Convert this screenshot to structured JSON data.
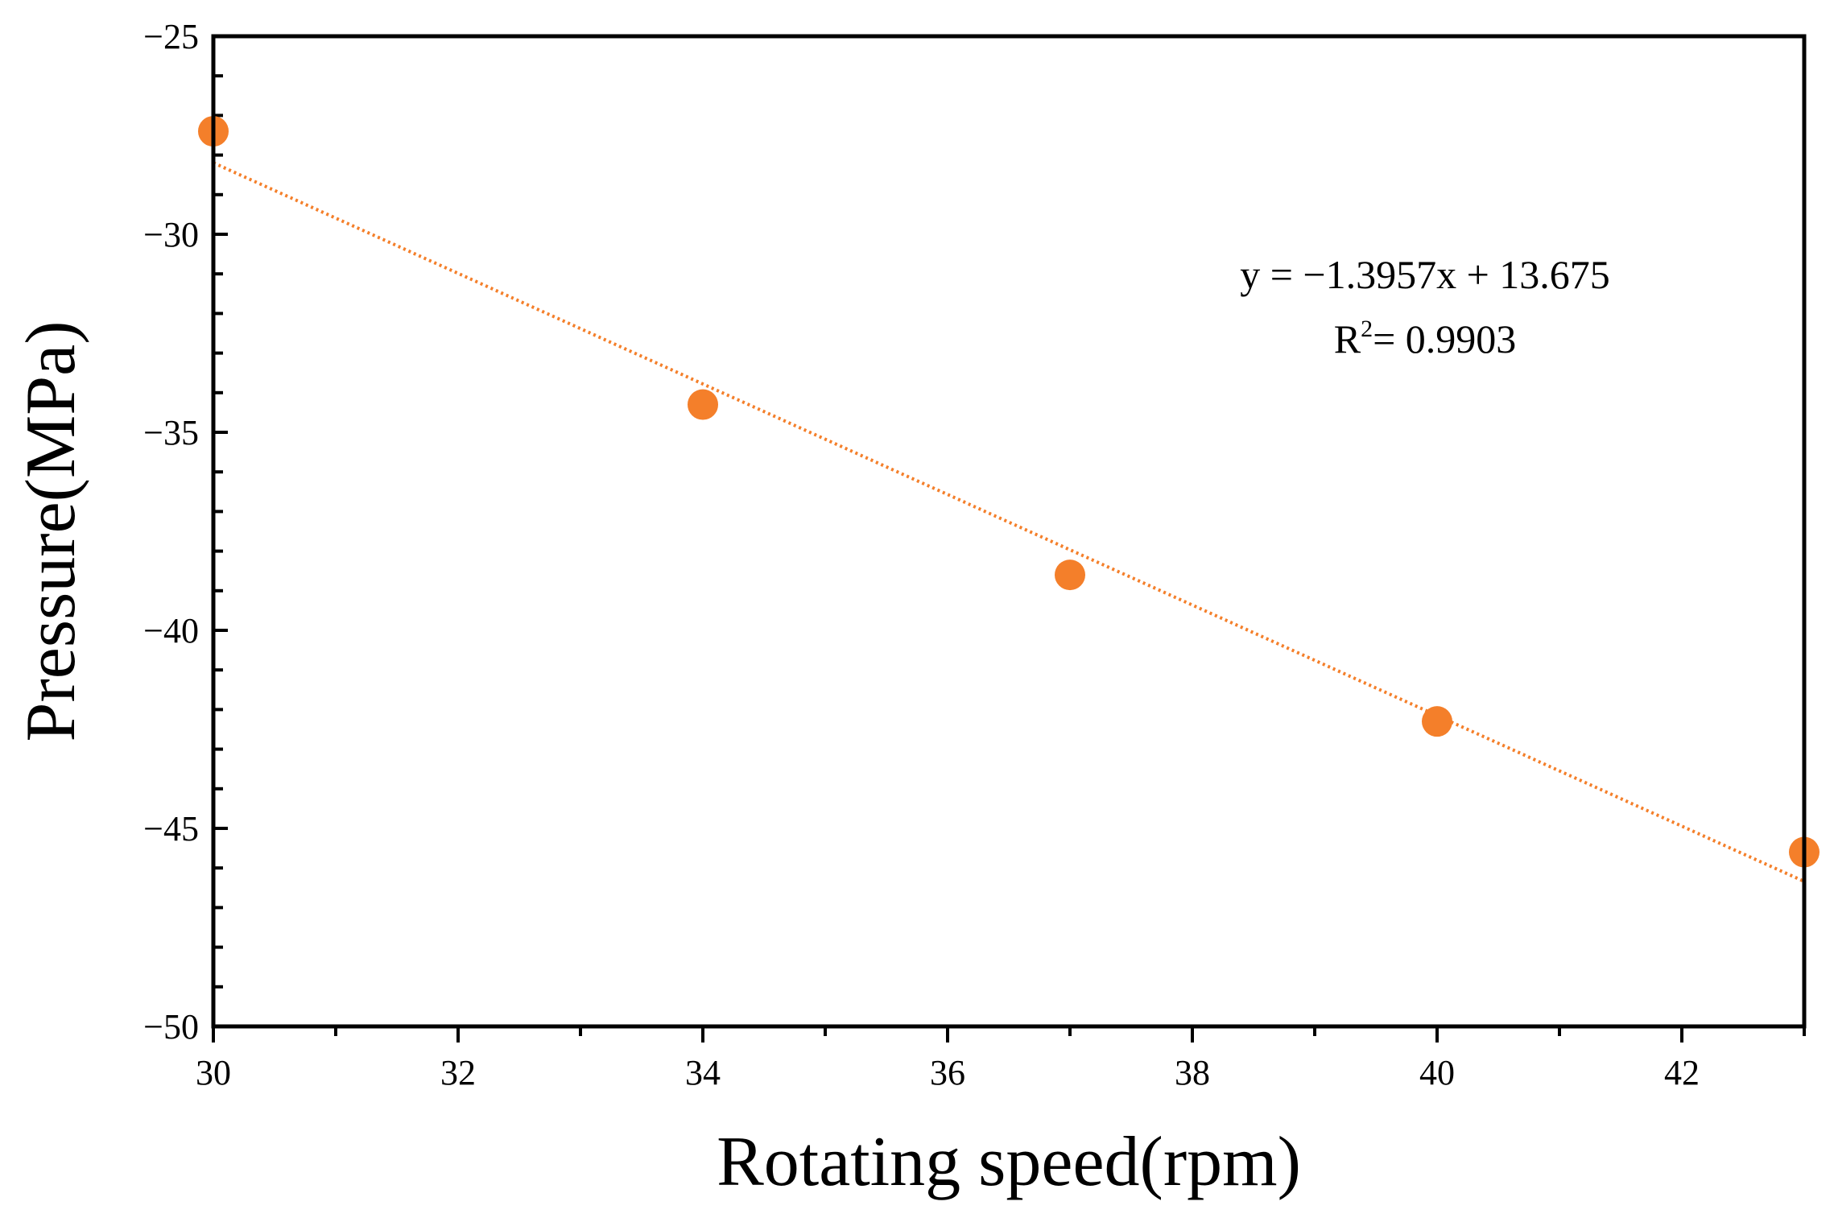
{
  "chart_data": {
    "type": "scatter",
    "title": "",
    "xlabel": "Rotating speed(rpm)",
    "ylabel": "Pressure(MPa)",
    "xlim": [
      30,
      43
    ],
    "ylim": [
      -50,
      -25
    ],
    "x_ticks": [
      30,
      32,
      34,
      36,
      38,
      40,
      42
    ],
    "x_tick_labels": [
      "30",
      "32",
      "34",
      "36",
      "38",
      "40",
      "42"
    ],
    "y_ticks": [
      -25,
      -30,
      -35,
      -40,
      -45,
      -50
    ],
    "y_tick_labels": [
      "−25",
      "−30",
      "−35",
      "−40",
      "−45",
      "−50"
    ],
    "grid": false,
    "series": [
      {
        "name": "Pressure",
        "color": "#F47F2A",
        "x": [
          30,
          34,
          37,
          40,
          43
        ],
        "y": [
          -27.4,
          -34.3,
          -38.6,
          -42.3,
          -45.6
        ]
      }
    ],
    "trendline": {
      "type": "linear",
      "slope": -1.3957,
      "intercept": 13.675,
      "color": "#F47F2A",
      "style": "dotted"
    },
    "annotations": {
      "equation": "y = −1.3957x + 13.675",
      "r2_prefix": "R",
      "r2_sup": "2",
      "r2_value": "= 0.9903"
    }
  }
}
